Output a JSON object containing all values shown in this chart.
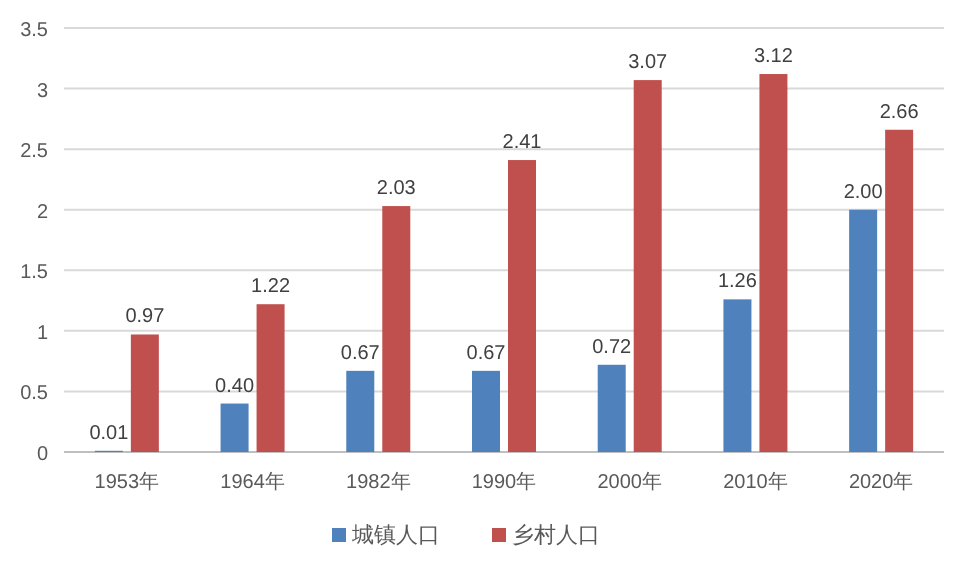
{
  "chart_data": {
    "type": "bar",
    "categories": [
      "1953年",
      "1964年",
      "1982年",
      "1990年",
      "2000年",
      "2010年",
      "2020年"
    ],
    "series": [
      {
        "name": "城镇人口",
        "color": "#4f81bd",
        "values": [
          0.01,
          0.4,
          0.67,
          0.67,
          0.72,
          1.26,
          2.0
        ],
        "value_labels": [
          "0.01",
          "0.40",
          "0.67",
          "0.67",
          "0.72",
          "1.26",
          "2.00"
        ]
      },
      {
        "name": "乡村人口",
        "color": "#c0504d",
        "values": [
          0.97,
          1.22,
          2.03,
          2.41,
          3.07,
          3.12,
          2.66
        ],
        "value_labels": [
          "0.97",
          "1.22",
          "2.03",
          "2.41",
          "3.07",
          "3.12",
          "2.66"
        ]
      }
    ],
    "ylim": [
      0,
      3.5
    ],
    "yticks": [
      0,
      0.5,
      1,
      1.5,
      2,
      2.5,
      3,
      3.5
    ],
    "grid": "y",
    "legend": "bottom"
  }
}
